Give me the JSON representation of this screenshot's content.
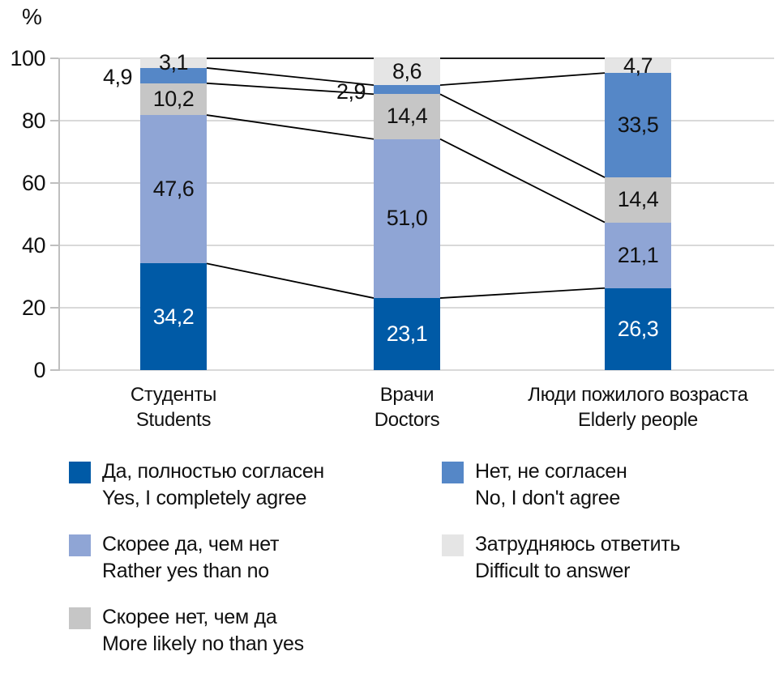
{
  "chart_data": {
    "type": "bar",
    "stacked": true,
    "unit_label": "%",
    "ylim": [
      0,
      100
    ],
    "grid": true,
    "y_ticks": [
      0,
      20,
      40,
      60,
      80,
      100
    ],
    "categories": [
      {
        "ru": "Студенты",
        "en": "Students"
      },
      {
        "ru": "Врачи",
        "en": "Doctors"
      },
      {
        "ru": "Люди пожилого возраста",
        "en": "Elderly people"
      }
    ],
    "series": [
      {
        "ru": "Да, полностью согласен",
        "en": "Yes, I completely agree",
        "color": "#005aa6",
        "text_color": "#ffffff",
        "values": [
          34.2,
          23.1,
          26.3
        ],
        "labels": [
          "34,2",
          "23,1",
          "26,3"
        ],
        "label_pos": [
          "inside",
          "inside",
          "inside"
        ]
      },
      {
        "ru": "Скорее да, чем нет",
        "en": "Rather yes than no",
        "color": "#8fa5d5",
        "text_color": "#111111",
        "values": [
          47.6,
          51.0,
          21.1
        ],
        "labels": [
          "47,6",
          "51,0",
          "21,1"
        ],
        "label_pos": [
          "inside",
          "inside",
          "inside"
        ]
      },
      {
        "ru": "Скорее нет, чем да",
        "en": "More likely no than yes",
        "color": "#c6c6c6",
        "text_color": "#111111",
        "values": [
          10.2,
          14.4,
          14.4
        ],
        "labels": [
          "10,2",
          "14,4",
          "14,4"
        ],
        "label_pos": [
          "inside",
          "inside",
          "inside"
        ]
      },
      {
        "ru": "Нет, не согласен",
        "en": "No, I don't agree",
        "color": "#5587c7",
        "text_color": "#111111",
        "values": [
          4.9,
          2.9,
          33.5
        ],
        "labels": [
          "4,9",
          "2,9",
          "33,5"
        ],
        "label_pos": [
          "outside-left",
          "outside-left",
          "inside"
        ]
      },
      {
        "ru": "Затрудняюсь ответить",
        "en": "Difficult to answer",
        "color": "#e5e5e5",
        "text_color": "#111111",
        "values": [
          3.1,
          8.6,
          4.7
        ],
        "labels": [
          "3,1",
          "8,6",
          "4,7"
        ],
        "label_pos": [
          "inside",
          "inside",
          "inside"
        ]
      }
    ],
    "connector_lines": true,
    "connector_color": "#000000",
    "legend": {
      "columns": [
        [
          0,
          1,
          2
        ],
        [
          3,
          4
        ]
      ]
    }
  }
}
